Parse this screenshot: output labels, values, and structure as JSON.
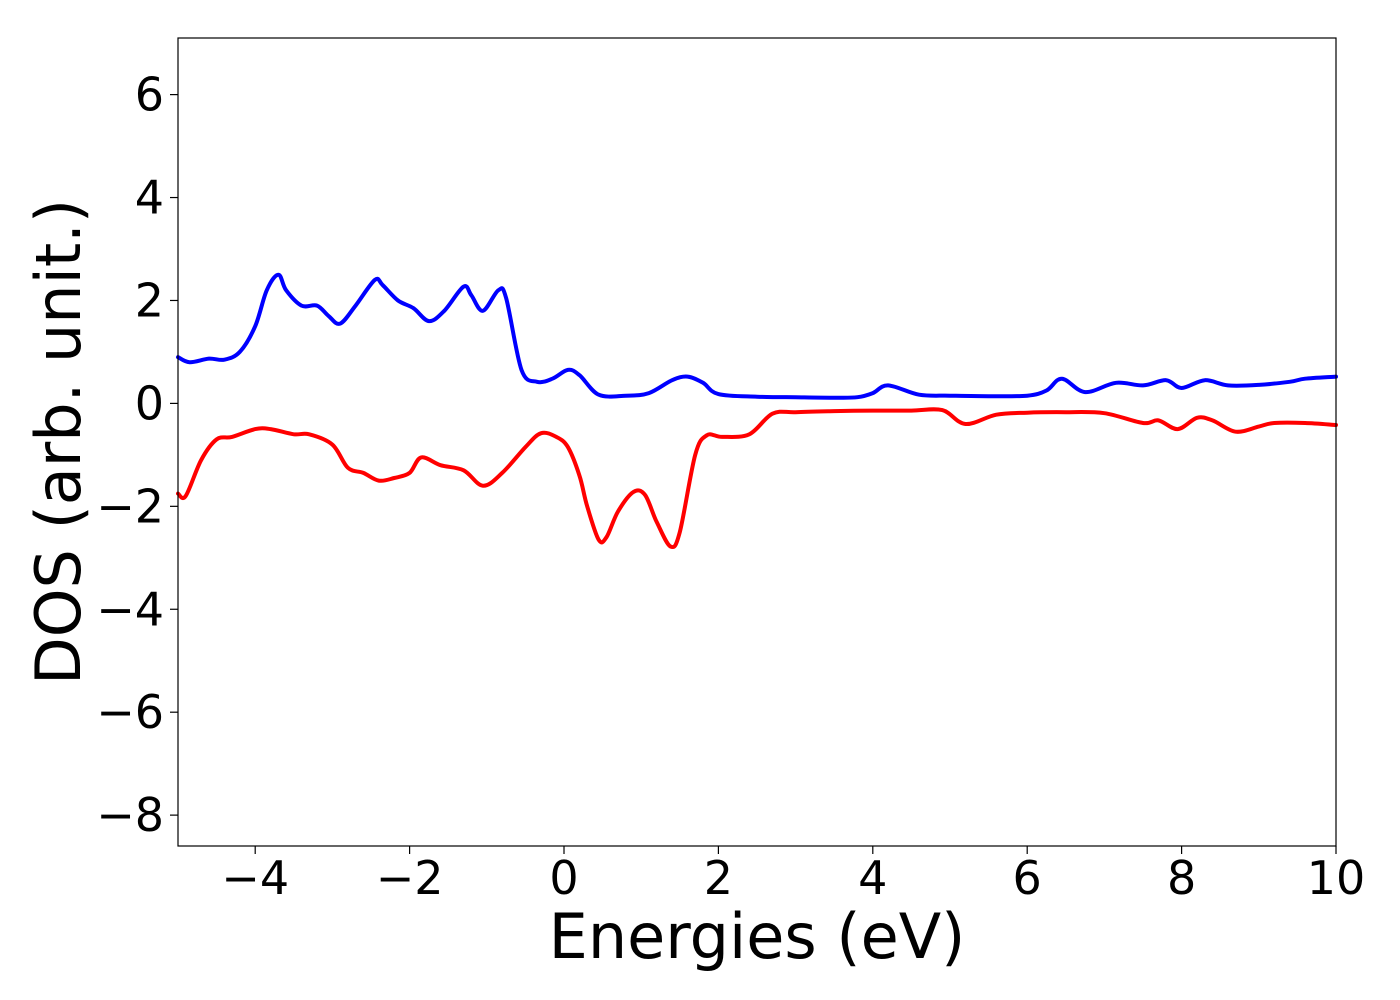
{
  "chart_data": {
    "type": "line",
    "title": "",
    "xlabel": "Energies (eV)",
    "ylabel": "DOS (arb. unit.)",
    "xlim": [
      -5,
      10
    ],
    "ylim": [
      -8.6,
      7.1
    ],
    "xticks": [
      -4,
      -2,
      0,
      2,
      4,
      6,
      8,
      10
    ],
    "xtick_labels": [
      "−4",
      "−2",
      "0",
      "2",
      "4",
      "6",
      "8",
      "10"
    ],
    "yticks": [
      6,
      4,
      2,
      0,
      -2,
      -4,
      -6,
      -8
    ],
    "ytick_labels": [
      "6",
      "4",
      "2",
      "0",
      "−2",
      "−4",
      "−6",
      "−8"
    ],
    "grid": false,
    "legend": "none",
    "series": [
      {
        "color": "#0000ff",
        "x": [
          -5.0,
          -4.85,
          -4.6,
          -4.4,
          -4.2,
          -4.0,
          -3.85,
          -3.7,
          -3.6,
          -3.4,
          -3.2,
          -3.05,
          -2.9,
          -2.7,
          -2.45,
          -2.35,
          -2.15,
          -1.95,
          -1.75,
          -1.55,
          -1.3,
          -1.2,
          -1.05,
          -0.85,
          -0.75,
          -0.55,
          -0.35,
          -0.15,
          0.05,
          0.2,
          0.45,
          0.8,
          1.1,
          1.4,
          1.6,
          1.8,
          2.0,
          2.5,
          3.0,
          3.5,
          3.8,
          4.0,
          4.2,
          4.6,
          5.0,
          5.5,
          6.0,
          6.25,
          6.45,
          6.75,
          7.15,
          7.5,
          7.8,
          8.0,
          8.3,
          8.6,
          9.0,
          9.4,
          9.6,
          10.0
        ],
        "y": [
          0.9,
          0.8,
          0.87,
          0.85,
          1.0,
          1.5,
          2.2,
          2.5,
          2.2,
          1.9,
          1.9,
          1.7,
          1.55,
          1.9,
          2.4,
          2.3,
          2.0,
          1.85,
          1.6,
          1.8,
          2.27,
          2.1,
          1.8,
          2.2,
          2.05,
          0.65,
          0.42,
          0.48,
          0.65,
          0.55,
          0.17,
          0.15,
          0.2,
          0.45,
          0.52,
          0.4,
          0.18,
          0.13,
          0.12,
          0.11,
          0.12,
          0.2,
          0.35,
          0.17,
          0.15,
          0.14,
          0.15,
          0.25,
          0.48,
          0.22,
          0.4,
          0.35,
          0.45,
          0.3,
          0.45,
          0.35,
          0.36,
          0.42,
          0.48,
          0.52
        ]
      },
      {
        "color": "#ff0000",
        "x": [
          -5.0,
          -4.9,
          -4.7,
          -4.5,
          -4.3,
          -4.0,
          -3.8,
          -3.5,
          -3.3,
          -3.0,
          -2.8,
          -2.6,
          -2.4,
          -2.2,
          -2.0,
          -1.85,
          -1.6,
          -1.3,
          -1.05,
          -0.8,
          -0.5,
          -0.3,
          -0.1,
          0.05,
          0.2,
          0.3,
          0.45,
          0.55,
          0.7,
          0.9,
          1.05,
          1.2,
          1.38,
          1.5,
          1.7,
          1.85,
          2.05,
          2.4,
          2.7,
          3.0,
          3.5,
          4.0,
          4.5,
          4.9,
          5.2,
          5.6,
          6.0,
          6.5,
          7.0,
          7.5,
          7.7,
          7.95,
          8.2,
          8.4,
          8.7,
          9.0,
          9.2,
          9.6,
          10.0
        ],
        "y": [
          -1.75,
          -1.8,
          -1.1,
          -0.7,
          -0.65,
          -0.5,
          -0.5,
          -0.6,
          -0.6,
          -0.8,
          -1.25,
          -1.35,
          -1.5,
          -1.45,
          -1.35,
          -1.05,
          -1.2,
          -1.3,
          -1.6,
          -1.35,
          -0.85,
          -0.58,
          -0.65,
          -0.85,
          -1.4,
          -2.0,
          -2.65,
          -2.6,
          -2.1,
          -1.72,
          -1.78,
          -2.3,
          -2.78,
          -2.5,
          -1.0,
          -0.62,
          -0.65,
          -0.6,
          -0.2,
          -0.17,
          -0.15,
          -0.14,
          -0.14,
          -0.13,
          -0.4,
          -0.22,
          -0.18,
          -0.17,
          -0.19,
          -0.38,
          -0.33,
          -0.5,
          -0.28,
          -0.33,
          -0.55,
          -0.45,
          -0.38,
          -0.38,
          -0.42
        ]
      }
    ]
  }
}
